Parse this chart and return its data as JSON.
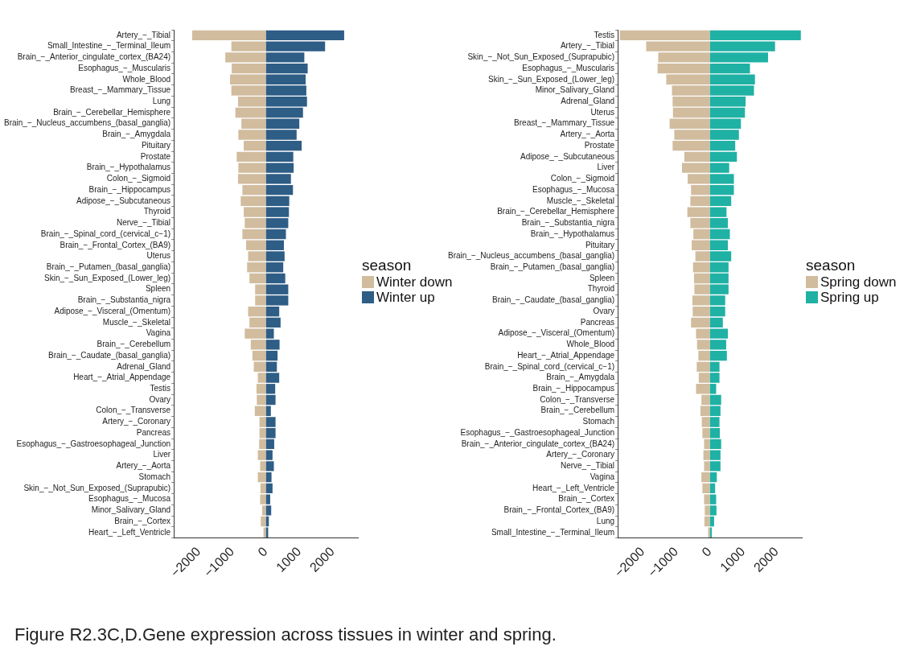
{
  "chart_data": [
    {
      "type": "bar",
      "orientation": "horizontal",
      "stacked": true,
      "legend": "right",
      "legend_title": "season",
      "grid": false,
      "categories": [
        "Artery_−_Tibial",
        "Small_Intestine_−_Terminal_Ileum",
        "Brain_−_Anterior_cingulate_cortex_(BA24)",
        "Esophagus_−_Muscularis",
        "Whole_Blood",
        "Breast_−_Mammary_Tissue",
        "Lung",
        "Brain_−_Cerebellar_Hemisphere",
        "Brain_−_Nucleus_accumbens_(basal_ganglia)",
        "Brain_−_Amygdala",
        "Pituitary",
        "Prostate",
        "Brain_−_Hypothalamus",
        "Colon_−_Sigmoid",
        "Brain_−_Hippocampus",
        "Adipose_−_Subcutaneous",
        "Thyroid",
        "Nerve_−_Tibial",
        "Brain_−_Spinal_cord_(cervical_c−1)",
        "Brain_−_Frontal_Cortex_(BA9)",
        "Uterus",
        "Brain_−_Putamen_(basal_ganglia)",
        "Skin_−_Sun_Exposed_(Lower_leg)",
        "Spleen",
        "Brain_−_Substantia_nigra",
        "Adipose_−_Visceral_(Omentum)",
        "Muscle_−_Skeletal",
        "Vagina",
        "Brain_−_Cerebellum",
        "Brain_−_Caudate_(basal_ganglia)",
        "Adrenal_Gland",
        "Heart_−_Atrial_Appendage",
        "Testis",
        "Ovary",
        "Colon_−_Transverse",
        "Artery_−_Coronary",
        "Pancreas",
        "Esophagus_−_Gastroesophageal_Junction",
        "Liver",
        "Artery_−_Aorta",
        "Stomach",
        "Skin_−_Not_Sun_Exposed_(Suprapubic)",
        "Esophagus_−_Mucosa",
        "Minor_Salivary_Gland",
        "Brain_−_Cortex",
        "Heart_−_Left_Ventricle"
      ],
      "series": [
        {
          "name": "Winter down",
          "color": "#d1bc9e",
          "values": [
            -2200,
            -1030,
            -1210,
            -1020,
            -1070,
            -1030,
            -830,
            -910,
            -730,
            -820,
            -660,
            -870,
            -820,
            -830,
            -700,
            -750,
            -660,
            -630,
            -700,
            -590,
            -530,
            -560,
            -490,
            -320,
            -320,
            -530,
            -490,
            -630,
            -450,
            -400,
            -360,
            -240,
            -280,
            -270,
            -330,
            -190,
            -190,
            -200,
            -240,
            -170,
            -240,
            -160,
            -170,
            -110,
            -150,
            -70
          ]
        },
        {
          "name": "Winter up",
          "color": "#2e5d86",
          "values": [
            2340,
            1770,
            1150,
            1250,
            1190,
            1210,
            1230,
            1110,
            1000,
            920,
            1070,
            820,
            830,
            750,
            810,
            700,
            690,
            670,
            600,
            540,
            560,
            520,
            580,
            670,
            670,
            400,
            440,
            240,
            410,
            350,
            330,
            400,
            280,
            290,
            150,
            290,
            290,
            250,
            200,
            240,
            170,
            200,
            130,
            160,
            90,
            70
          ]
        }
      ],
      "xlim": [
        -2750,
        2750
      ],
      "xticks": [
        -2000,
        -1000,
        0,
        1000,
        2000
      ],
      "annotations": [
        "Figure R2.3C,D.Gene expression across tissues in winter and spring."
      ]
    },
    {
      "type": "bar",
      "orientation": "horizontal",
      "stacked": true,
      "legend": "right",
      "legend_title": "season",
      "grid": false,
      "categories": [
        "Testis",
        "Artery_−_Tibial",
        "Skin_−_Not_Sun_Exposed_(Suprapubic)",
        "Esophagus_−_Muscularis",
        "Skin_−_Sun_Exposed_(Lower_leg)",
        "Minor_Salivary_Gland",
        "Adrenal_Gland",
        "Uterus",
        "Breast_−_Mammary_Tissue",
        "Artery_−_Aorta",
        "Prostate",
        "Adipose_−_Subcutaneous",
        "Liver",
        "Colon_−_Sigmoid",
        "Esophagus_−_Mucosa",
        "Muscle_−_Skeletal",
        "Brain_−_Cerebellar_Hemisphere",
        "Brain_−_Substantia_nigra",
        "Brain_−_Hypothalamus",
        "Pituitary",
        "Brain_−_Nucleus_accumbens_(basal_ganglia)",
        "Brain_−_Putamen_(basal_ganglia)",
        "Spleen",
        "Thyroid",
        "Brain_−_Caudate_(basal_ganglia)",
        "Ovary",
        "Pancreas",
        "Adipose_−_Visceral_(Omentum)",
        "Whole_Blood",
        "Heart_−_Atrial_Appendage",
        "Brain_−_Spinal_cord_(cervical_c−1)",
        "Brain_−_Amygdala",
        "Brain_−_Hippocampus",
        "Colon_−_Transverse",
        "Brain_−_Cerebellum",
        "Stomach",
        "Esophagus_−_Gastroesophageal_Junction",
        "Brain_−_Anterior_cingulate_cortex_(BA24)",
        "Artery_−_Coronary",
        "Nerve_−_Tibial",
        "Vagina",
        "Heart_−_Left_Ventricle",
        "Brain_−_Cortex",
        "Brain_−_Frontal_Cortex_(BA9)",
        "Lung",
        "Small_Intestine_−_Terminal_Ileum"
      ],
      "series": [
        {
          "name": "Spring down",
          "color": "#d1bc9e",
          "values": [
            -2690,
            -1900,
            -1540,
            -1560,
            -1300,
            -1130,
            -1110,
            -1100,
            -1200,
            -1060,
            -1110,
            -760,
            -830,
            -660,
            -560,
            -580,
            -670,
            -580,
            -490,
            -540,
            -430,
            -500,
            -470,
            -460,
            -520,
            -510,
            -560,
            -410,
            -380,
            -340,
            -390,
            -330,
            -410,
            -250,
            -280,
            -240,
            -220,
            -170,
            -190,
            -170,
            -250,
            -220,
            -170,
            -150,
            -160,
            -50
          ]
        },
        {
          "name": "Spring up",
          "color": "#1fb1a4",
          "values": [
            2720,
            1950,
            1740,
            1200,
            1350,
            1320,
            1070,
            1050,
            930,
            870,
            760,
            810,
            580,
            720,
            720,
            640,
            500,
            540,
            600,
            540,
            640,
            560,
            560,
            560,
            460,
            460,
            390,
            540,
            490,
            510,
            290,
            290,
            190,
            340,
            320,
            290,
            300,
            340,
            320,
            320,
            210,
            160,
            190,
            200,
            130,
            60
          ]
        }
      ],
      "xlim": [
        -2750,
        2750
      ],
      "xticks": [
        -2000,
        -1000,
        0,
        1000,
        2000
      ]
    }
  ]
}
